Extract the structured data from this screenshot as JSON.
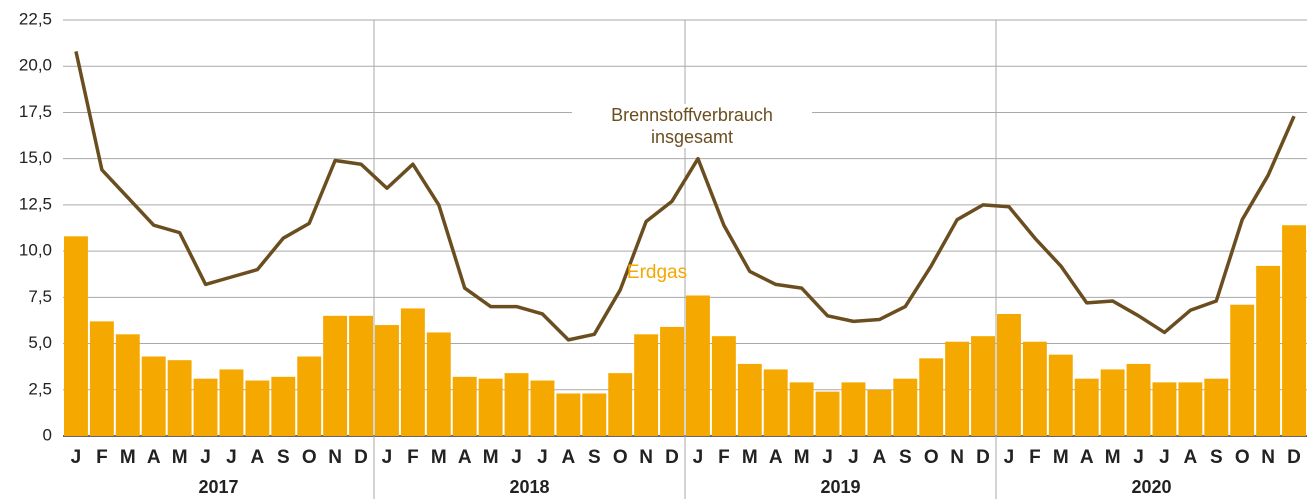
{
  "chart_data": {
    "type": "bar_line",
    "categories": [
      "J",
      "F",
      "M",
      "A",
      "M",
      "J",
      "J",
      "A",
      "S",
      "O",
      "N",
      "D",
      "J",
      "F",
      "M",
      "A",
      "M",
      "J",
      "J",
      "A",
      "S",
      "O",
      "N",
      "D",
      "J",
      "F",
      "M",
      "A",
      "M",
      "J",
      "J",
      "A",
      "S",
      "O",
      "N",
      "D",
      "J",
      "F",
      "M",
      "A",
      "M",
      "J",
      "J",
      "A",
      "S",
      "O",
      "N",
      "D"
    ],
    "years": [
      "2017",
      "2018",
      "2019",
      "2020"
    ],
    "series": [
      {
        "name": "Erdgas",
        "type": "bar",
        "color": "#f5a800",
        "values": [
          10.8,
          6.2,
          5.5,
          4.3,
          4.1,
          3.1,
          3.6,
          3.0,
          3.2,
          4.3,
          6.5,
          6.5,
          6.0,
          6.9,
          5.6,
          3.2,
          3.1,
          3.4,
          3.0,
          2.3,
          2.3,
          3.4,
          5.5,
          5.9,
          7.6,
          5.4,
          3.9,
          3.6,
          2.9,
          2.4,
          2.9,
          2.5,
          3.1,
          4.2,
          5.1,
          5.4,
          6.6,
          5.1,
          4.4,
          3.1,
          3.6,
          3.9,
          2.9,
          2.9,
          3.1,
          7.1,
          9.2,
          11.4
        ]
      },
      {
        "name": "Brennstoffverbrauch insgesamt",
        "type": "line",
        "color": "#6b4e1f",
        "values": [
          20.8,
          14.4,
          12.9,
          11.4,
          11.0,
          8.2,
          8.6,
          9.0,
          10.7,
          11.5,
          14.9,
          14.7,
          13.4,
          14.7,
          12.5,
          8.0,
          7.0,
          7.0,
          6.6,
          5.2,
          5.5,
          7.9,
          11.6,
          12.7,
          15.0,
          11.4,
          8.9,
          8.2,
          8.0,
          6.5,
          6.2,
          6.3,
          7.0,
          9.2,
          11.7,
          12.5,
          12.4,
          10.7,
          9.2,
          7.2,
          7.3,
          6.5,
          5.6,
          6.8,
          7.3,
          11.7,
          14.1,
          17.3
        ]
      }
    ],
    "ylim": [
      0,
      22.5
    ],
    "yticks": [
      0,
      {
        "value": 2.5,
        "label": "2,5"
      },
      {
        "value": 5,
        "label": "5,0"
      },
      {
        "value": 7.5,
        "label": "7,5"
      },
      {
        "value": 10,
        "label": "10,0"
      },
      {
        "value": 12.5,
        "label": "12,5"
      },
      {
        "value": 15,
        "label": "15,0"
      },
      {
        "value": 17.5,
        "label": "17,5"
      },
      {
        "value": 20,
        "label": "20,0"
      },
      {
        "value": 22.5,
        "label": "22,5"
      }
    ],
    "grid": true
  }
}
